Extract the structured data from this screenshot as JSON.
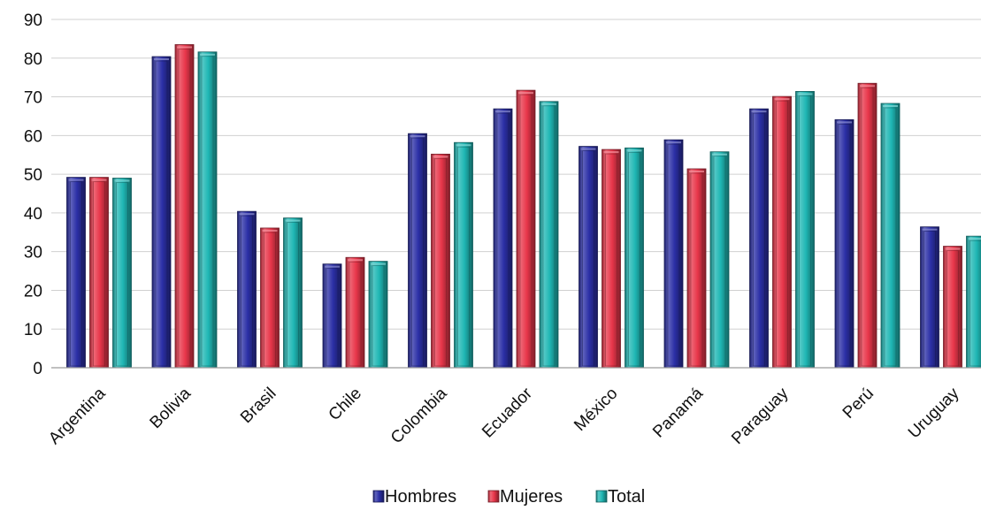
{
  "chart_data": {
    "type": "bar",
    "title": "",
    "xlabel": "",
    "ylabel": "",
    "categories": [
      "Argentina",
      "Bolivia",
      "Brasil",
      "Chile",
      "Colombia",
      "Ecuador",
      "México",
      "Panamá",
      "Paraguay",
      "Perú",
      "Uruguay"
    ],
    "series": [
      {
        "name": "Hombres",
        "color": "#2B2FA6",
        "values": [
          49.2,
          80.4,
          40.4,
          26.8,
          60.5,
          66.9,
          57.2,
          58.9,
          66.9,
          64.1,
          36.4
        ]
      },
      {
        "name": "Mujeres",
        "color": "#E8364A",
        "values": [
          49.2,
          83.5,
          36.1,
          28.5,
          55.2,
          71.7,
          56.4,
          51.4,
          70.1,
          73.5,
          31.4
        ]
      },
      {
        "name": "Total",
        "color": "#1FB7B4",
        "values": [
          49.0,
          81.6,
          38.7,
          27.5,
          58.2,
          68.8,
          56.8,
          55.8,
          71.4,
          68.3,
          34.0
        ]
      }
    ],
    "ylim": [
      0,
      90
    ],
    "y_ticks": [
      0,
      10,
      20,
      30,
      40,
      50,
      60,
      70,
      80,
      90
    ],
    "grid": true,
    "legend_position": "bottom-center"
  }
}
